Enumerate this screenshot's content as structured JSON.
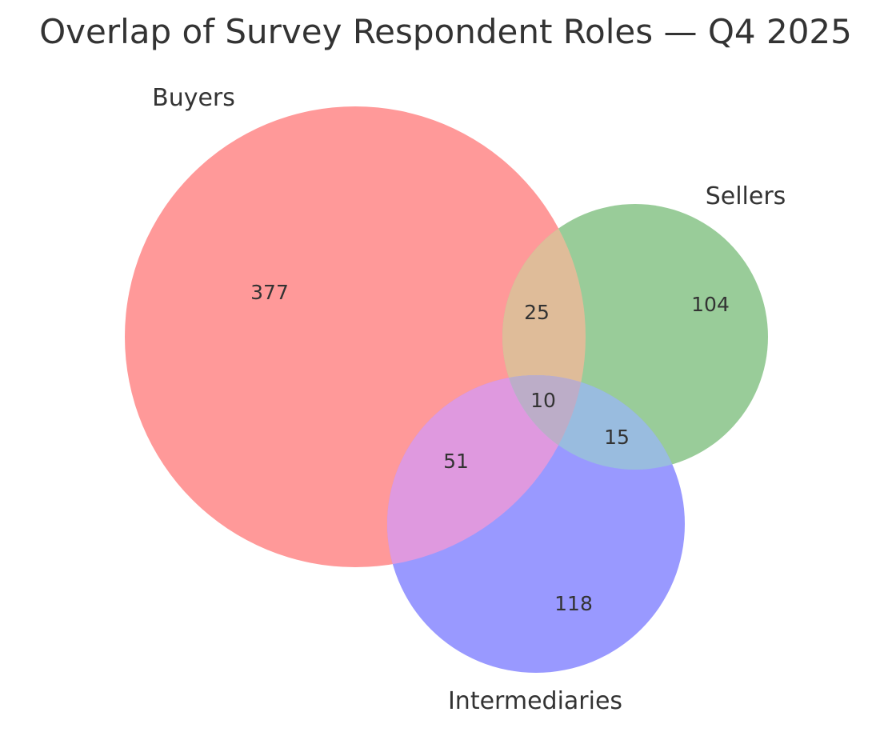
{
  "title": "Overlap of Survey Respondent Roles — Q4 2025",
  "sets": [
    {
      "key": "buyers",
      "name": "Buyers",
      "color": "#ff9999"
    },
    {
      "key": "sellers",
      "name": "Sellers",
      "color": "#99cc99"
    },
    {
      "key": "intermediaries",
      "name": "Intermediaries",
      "color": "#9999ff"
    }
  ],
  "overlap_colors": {
    "buyers_sellers": "#dfbc99",
    "buyers_intermediaries": "#df99df",
    "sellers_intermediaries": "#99bcdf",
    "all_three": "#bcadc8"
  },
  "regions": {
    "buyers_only": "377",
    "sellers_only": "104",
    "intermediaries_only": "118",
    "buyers_sellers": "25",
    "buyers_intermediaries": "51",
    "sellers_intermediaries": "15",
    "all_three": "10"
  }
}
